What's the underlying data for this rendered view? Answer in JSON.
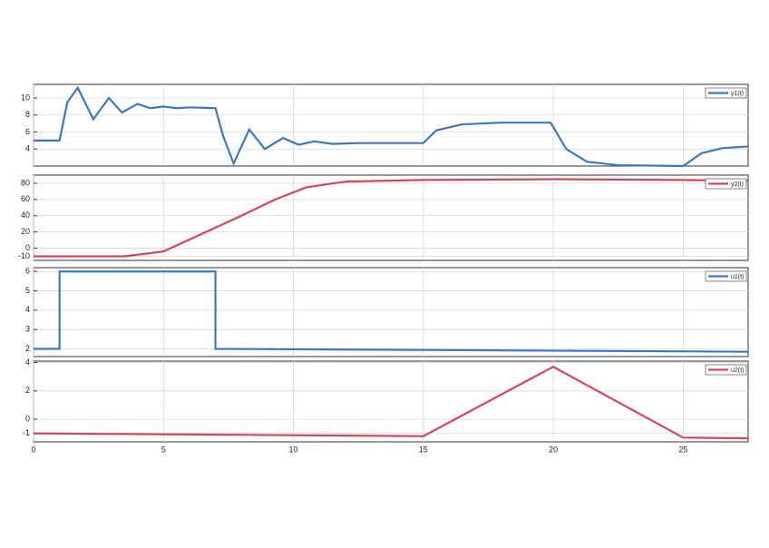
{
  "chart_data": [
    {
      "type": "line",
      "ylim": [
        2,
        11.6
      ],
      "yticks": [
        4,
        6,
        8,
        10
      ],
      "grid": true,
      "series": [
        {
          "name": "y1(t)",
          "color": "#3c78c0",
          "x": [
            0,
            1,
            1.3,
            1.7,
            2.3,
            2.9,
            3.4,
            4,
            4.5,
            5,
            5.5,
            6,
            7,
            7.3,
            7.7,
            8.3,
            8.9,
            9.6,
            10.2,
            10.8,
            11.5,
            12.5,
            15,
            15.5,
            16.5,
            18,
            19.9,
            20.5,
            21.3,
            22.5,
            25,
            25.7,
            26.5,
            27.5
          ],
          "values": [
            5,
            5,
            9.5,
            11.2,
            7.5,
            10,
            8.3,
            9.3,
            8.8,
            9,
            8.8,
            8.9,
            8.8,
            5.5,
            2.3,
            6.3,
            4,
            5.3,
            4.5,
            4.9,
            4.6,
            4.7,
            4.7,
            6.2,
            6.9,
            7.1,
            7.1,
            4,
            2.5,
            2.1,
            2,
            3.5,
            4.1,
            4.3
          ]
        }
      ]
    },
    {
      "type": "line",
      "ylim": [
        -15,
        90
      ],
      "yticks": [
        -10,
        0,
        20,
        40,
        60,
        80
      ],
      "grid": true,
      "series": [
        {
          "name": "y2(t)",
          "color": "#d8455a",
          "x": [
            0,
            3.5,
            4,
            5,
            8,
            9.3,
            10.5,
            12,
            15,
            20,
            25,
            27.5
          ],
          "values": [
            -10,
            -10,
            -8,
            -4,
            40,
            60,
            75,
            82,
            84,
            85,
            84,
            83
          ]
        }
      ]
    },
    {
      "type": "line",
      "ylim": [
        1.6,
        6.2
      ],
      "yticks": [
        2,
        3,
        4,
        5,
        6
      ],
      "grid": true,
      "series": [
        {
          "name": "u1(t)",
          "color": "#3c78c0",
          "x": [
            0,
            1,
            1,
            7,
            7,
            27.5
          ],
          "values": [
            2,
            2,
            6,
            6,
            2,
            1.85
          ]
        }
      ]
    },
    {
      "type": "line",
      "ylim": [
        -1.6,
        4.1
      ],
      "yticks": [
        -1,
        0,
        2,
        4
      ],
      "grid": true,
      "xlim": [
        0,
        27.5
      ],
      "xticks": [
        0,
        5,
        10,
        15,
        20,
        25
      ],
      "series": [
        {
          "name": "u2(t)",
          "color": "#d8455a",
          "x": [
            0,
            15,
            20,
            25,
            27.5
          ],
          "values": [
            -1,
            -1.2,
            3.7,
            -1.3,
            -1.35
          ]
        }
      ]
    }
  ]
}
